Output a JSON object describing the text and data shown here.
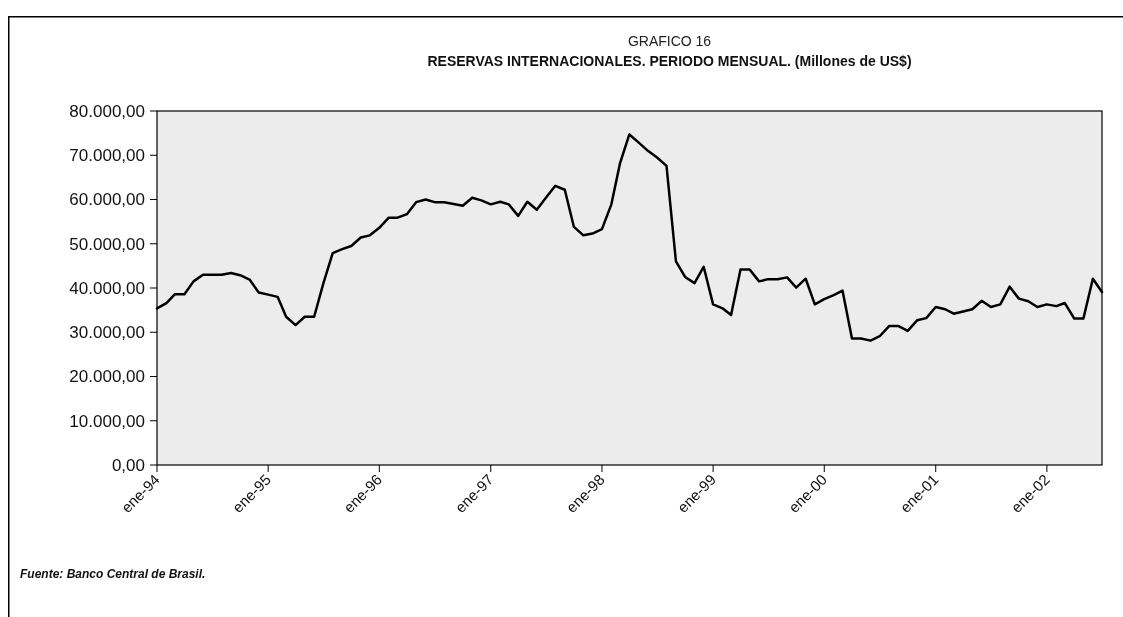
{
  "chart_data": {
    "type": "line",
    "title": "GRAFICO 16",
    "subtitle": "RESERVAS INTERNACIONALES. PERIODO MENSUAL. (Millones de US$)",
    "x": [
      "1994-01",
      "1994-02",
      "1994-03",
      "1994-04",
      "1994-05",
      "1994-06",
      "1994-07",
      "1994-08",
      "1994-09",
      "1994-10",
      "1994-11",
      "1994-12",
      "1995-01",
      "1995-02",
      "1995-03",
      "1995-04",
      "1995-05",
      "1995-06",
      "1995-07",
      "1995-08",
      "1995-09",
      "1995-10",
      "1995-11",
      "1995-12",
      "1996-01",
      "1996-02",
      "1996-03",
      "1996-04",
      "1996-05",
      "1996-06",
      "1996-07",
      "1996-08",
      "1996-09",
      "1996-10",
      "1996-11",
      "1996-12",
      "1997-01",
      "1997-02",
      "1997-03",
      "1997-04",
      "1997-05",
      "1997-06",
      "1997-07",
      "1997-08",
      "1997-09",
      "1997-10",
      "1997-11",
      "1997-12",
      "1998-01",
      "1998-02",
      "1998-03",
      "1998-04",
      "1998-05",
      "1998-06",
      "1998-07",
      "1998-08",
      "1998-09",
      "1998-10",
      "1998-11",
      "1998-12",
      "1999-01",
      "1999-02",
      "1999-03",
      "1999-04",
      "1999-05",
      "1999-06",
      "1999-07",
      "1999-08",
      "1999-09",
      "1999-10",
      "1999-11",
      "1999-12",
      "2000-01",
      "2000-02",
      "2000-03",
      "2000-04",
      "2000-05",
      "2000-06",
      "2000-07",
      "2000-08",
      "2000-09",
      "2000-10",
      "2000-11",
      "2000-12",
      "2001-01",
      "2001-02",
      "2001-03",
      "2001-04",
      "2001-05",
      "2001-06",
      "2001-07",
      "2001-08",
      "2001-09",
      "2001-10",
      "2001-11",
      "2001-12",
      "2002-01",
      "2002-02",
      "2002-03",
      "2002-04",
      "2002-05",
      "2002-06",
      "2002-07"
    ],
    "series": [
      {
        "color": "#000000",
        "values": [
          35400,
          36600,
          38600,
          38600,
          41500,
          43000,
          43000,
          43000,
          43400,
          42900,
          41900,
          39000,
          38500,
          38000,
          33500,
          31600,
          33500,
          33500,
          41000,
          47900,
          48800,
          49500,
          51400,
          51900,
          53600,
          55900,
          55900,
          56700,
          59400,
          60000,
          59400,
          59400,
          59000,
          58600,
          60400,
          59800,
          58900,
          59500,
          58900,
          56300,
          59500,
          57700,
          60400,
          63100,
          62200,
          53800,
          51900,
          52300,
          53300,
          58900,
          68100,
          74700,
          72900,
          71000,
          69500,
          67600,
          46000,
          42500,
          41100,
          44800,
          36300,
          35400,
          33900,
          44200,
          44200,
          41500,
          42000,
          42000,
          42400,
          40100,
          42100,
          36300,
          37500,
          38400,
          39400,
          28600,
          28600,
          28100,
          29100,
          31400,
          31400,
          30300,
          32700,
          33200,
          35700,
          35200,
          34200,
          34700,
          35200,
          37100,
          35700,
          36300,
          40300,
          37600,
          37000,
          35700,
          36300,
          35900,
          36600,
          33100,
          33100,
          42100,
          39100
        ]
      }
    ],
    "xlim": [
      "1994-01",
      "2002-07"
    ],
    "xticks": [
      {
        "value": "1994-01",
        "label": "ene-94"
      },
      {
        "value": "1995-01",
        "label": "ene-95"
      },
      {
        "value": "1996-01",
        "label": "ene-96"
      },
      {
        "value": "1997-01",
        "label": "ene-97"
      },
      {
        "value": "1998-01",
        "label": "ene-98"
      },
      {
        "value": "1999-01",
        "label": "ene-99"
      },
      {
        "value": "2000-01",
        "label": "ene-00"
      },
      {
        "value": "2001-01",
        "label": "ene-01"
      },
      {
        "value": "2002-01",
        "label": "ene-02"
      }
    ],
    "ylim": [
      0,
      80000
    ],
    "yticks": [
      {
        "value": 0,
        "label": "0,00"
      },
      {
        "value": 10000,
        "label": "10.000,00"
      },
      {
        "value": 20000,
        "label": "20.000,00"
      },
      {
        "value": 30000,
        "label": "30.000,00"
      },
      {
        "value": 40000,
        "label": "40.000,00"
      },
      {
        "value": 50000,
        "label": "50.000,00"
      },
      {
        "value": 60000,
        "label": "60.000,00"
      },
      {
        "value": 70000,
        "label": "70.000,00"
      },
      {
        "value": 80000,
        "label": "80.000,00"
      }
    ],
    "annotations": [
      "Fuente: Banco Central de Brasil."
    ]
  }
}
